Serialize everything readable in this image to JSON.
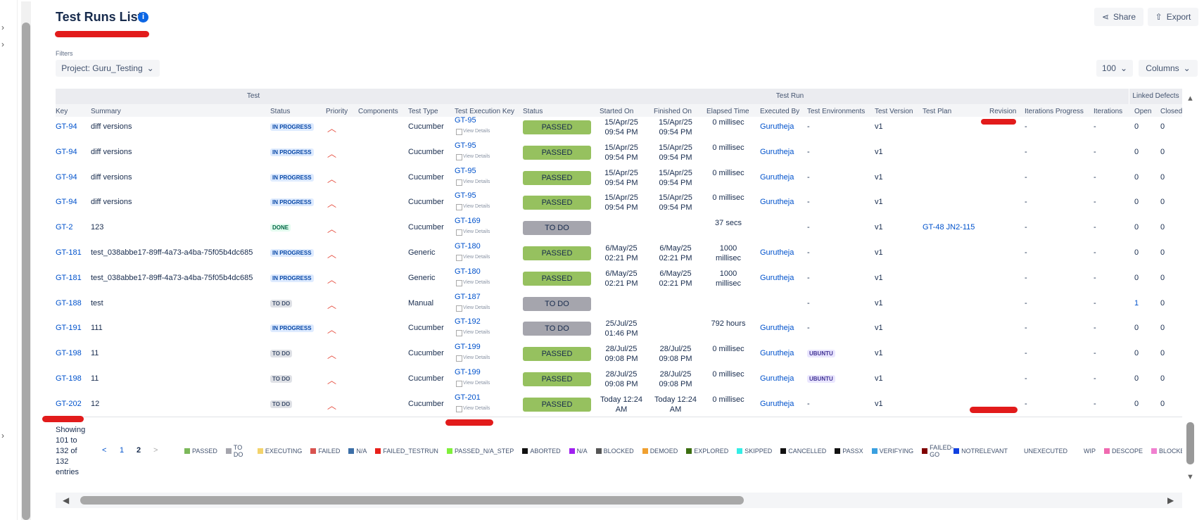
{
  "header": {
    "title": "Test Runs List",
    "share": "Share",
    "export": "Export"
  },
  "filters": {
    "label": "Filters",
    "project": "Project: Guru_Testing",
    "page_size": "100",
    "columns": "Columns"
  },
  "table": {
    "groups": [
      "Test",
      "Test Run",
      "Linked Defects"
    ],
    "columns": [
      "Key",
      "Summary",
      "Status",
      "Priority",
      "Components",
      "Test Type",
      "Test Execution Key",
      "Status",
      "Started On",
      "Finished On",
      "Elapsed Time",
      "Executed By",
      "Test Environments",
      "Test Version",
      "Test Plan",
      "Revision",
      "Iterations Progress",
      "Iterations",
      "Open",
      "Closed"
    ],
    "view_details": "View Details",
    "rows": [
      {
        "key": "GT-94",
        "summary": "diff versions",
        "status": "IN PROGRESS",
        "test_type": "Cucumber",
        "exec_key": "GT-95",
        "run_status": "PASSED",
        "started": "15/Apr/25 09:54 PM",
        "finished": "15/Apr/25 09:54 PM",
        "elapsed": "0 millisec",
        "executed_by": "Gurutheja",
        "environment": "-",
        "version": "v1",
        "iter_progress": "-",
        "iterations": "-",
        "open": 0,
        "closed": 0
      },
      {
        "key": "GT-94",
        "summary": "diff versions",
        "status": "IN PROGRESS",
        "test_type": "Cucumber",
        "exec_key": "GT-95",
        "run_status": "PASSED",
        "started": "15/Apr/25 09:54 PM",
        "finished": "15/Apr/25 09:54 PM",
        "elapsed": "0 millisec",
        "executed_by": "Gurutheja",
        "environment": "-",
        "version": "v1",
        "iter_progress": "-",
        "iterations": "-",
        "open": 0,
        "closed": 0
      },
      {
        "key": "GT-94",
        "summary": "diff versions",
        "status": "IN PROGRESS",
        "test_type": "Cucumber",
        "exec_key": "GT-95",
        "run_status": "PASSED",
        "started": "15/Apr/25 09:54 PM",
        "finished": "15/Apr/25 09:54 PM",
        "elapsed": "0 millisec",
        "executed_by": "Gurutheja",
        "environment": "-",
        "version": "v1",
        "iter_progress": "-",
        "iterations": "-",
        "open": 0,
        "closed": 0
      },
      {
        "key": "GT-94",
        "summary": "diff versions",
        "status": "IN PROGRESS",
        "test_type": "Cucumber",
        "exec_key": "GT-95",
        "run_status": "PASSED",
        "started": "15/Apr/25 09:54 PM",
        "finished": "15/Apr/25 09:54 PM",
        "elapsed": "0 millisec",
        "executed_by": "Gurutheja",
        "environment": "-",
        "version": "v1",
        "iter_progress": "-",
        "iterations": "-",
        "open": 0,
        "closed": 0
      },
      {
        "key": "GT-2",
        "summary": "123",
        "status": "DONE",
        "test_type": "Cucumber",
        "exec_key": "GT-169",
        "run_status": "TO DO",
        "elapsed": "37 secs",
        "environment": "-",
        "version": "v1",
        "plan": "GT-48 JN2-115",
        "iter_progress": "-",
        "iterations": "-",
        "open": 0,
        "closed": 0
      },
      {
        "key": "GT-181",
        "summary": "test_038abbe17-89ff-4a73-a4ba-75f05b4dc685",
        "status": "IN PROGRESS",
        "test_type": "Generic",
        "exec_key": "GT-180",
        "run_status": "PASSED",
        "started": "6/May/25 02:21 PM",
        "finished": "6/May/25 02:21 PM",
        "elapsed": "1000 millisec",
        "executed_by": "Gurutheja",
        "environment": "-",
        "version": "v1",
        "iter_progress": "-",
        "iterations": "-",
        "open": 0,
        "closed": 0
      },
      {
        "key": "GT-181",
        "summary": "test_038abbe17-89ff-4a73-a4ba-75f05b4dc685",
        "status": "IN PROGRESS",
        "test_type": "Generic",
        "exec_key": "GT-180",
        "run_status": "PASSED",
        "started": "6/May/25 02:21 PM",
        "finished": "6/May/25 02:21 PM",
        "elapsed": "1000 millisec",
        "executed_by": "Gurutheja",
        "environment": "-",
        "version": "v1",
        "iter_progress": "-",
        "iterations": "-",
        "open": 0,
        "closed": 0
      },
      {
        "key": "GT-188",
        "summary": "test",
        "status": "TO DO",
        "test_type": "Manual",
        "exec_key": "GT-187",
        "run_status": "TO DO",
        "environment": "-",
        "version": "v1",
        "iter_progress": "-",
        "iterations": "-",
        "open": 1,
        "closed": 0
      },
      {
        "key": "GT-191",
        "summary": "111",
        "status": "IN PROGRESS",
        "test_type": "Cucumber",
        "exec_key": "GT-192",
        "run_status": "TO DO",
        "started": "25/Jul/25 01:46 PM",
        "elapsed": "792 hours",
        "executed_by": "Gurutheja",
        "environment": "-",
        "version": "v1",
        "iter_progress": "-",
        "iterations": "-",
        "open": 0,
        "closed": 0
      },
      {
        "key": "GT-198",
        "summary": "11",
        "status": "TO DO",
        "test_type": "Cucumber",
        "exec_key": "GT-199",
        "run_status": "PASSED",
        "started": "28/Jul/25 09:08 PM",
        "finished": "28/Jul/25 09:08 PM",
        "elapsed": "0 millisec",
        "executed_by": "Gurutheja",
        "environment": "UBUNTU",
        "version": "v1",
        "iter_progress": "-",
        "iterations": "-",
        "open": 0,
        "closed": 0
      },
      {
        "key": "GT-198",
        "summary": "11",
        "status": "TO DO",
        "test_type": "Cucumber",
        "exec_key": "GT-199",
        "run_status": "PASSED",
        "started": "28/Jul/25 09:08 PM",
        "finished": "28/Jul/25 09:08 PM",
        "elapsed": "0 millisec",
        "executed_by": "Gurutheja",
        "environment": "UBUNTU",
        "version": "v1",
        "iter_progress": "-",
        "iterations": "-",
        "open": 0,
        "closed": 0
      },
      {
        "key": "GT-202",
        "summary": "12",
        "status": "TO DO",
        "test_type": "Cucumber",
        "exec_key": "GT-201",
        "run_status": "PASSED",
        "started": "Today 12:24 AM",
        "finished": "Today 12:24 AM",
        "elapsed": "0 millisec",
        "executed_by": "Gurutheja",
        "environment": "-",
        "version": "v1",
        "iter_progress": "-",
        "iterations": "-",
        "open": 0,
        "closed": 0
      }
    ]
  },
  "footer": {
    "showing": "Showing 101 to 132 of 132 entries",
    "prev": "<",
    "pages": [
      "1",
      "2"
    ],
    "next": ">",
    "legend": [
      {
        "name": "PASSED",
        "color": "#7cb85a"
      },
      {
        "name": "TO DO",
        "color": "#a5a5ad"
      },
      {
        "name": "EXECUTING",
        "color": "#f3d36b"
      },
      {
        "name": "FAILED",
        "color": "#d9534f"
      },
      {
        "name": "N/A",
        "color": "#3c6fa8"
      },
      {
        "name": "FAILED_TESTRUN",
        "color": "#e8201a"
      },
      {
        "name": "PASSED_N/A_STEP",
        "color": "#7ff03a"
      },
      {
        "name": "ABORTED",
        "color": "#111111"
      },
      {
        "name": "N/A",
        "color": "#a020f0"
      },
      {
        "name": "BLOCKED",
        "color": "#555555"
      },
      {
        "name": "DEMOED",
        "color": "#f0a030"
      },
      {
        "name": "EXPLORED",
        "color": "#3b6e10"
      },
      {
        "name": "SKIPPED",
        "color": "#33eee6"
      },
      {
        "name": "CANCELLED",
        "color": "#111111"
      },
      {
        "name": "PASSX",
        "color": "#111111"
      },
      {
        "name": "VERIFYING",
        "color": "#3aa0e0"
      },
      {
        "name": "FAILED-GO",
        "color": "#800000"
      },
      {
        "name": "NOTRELEVANT",
        "color": "#1040e0"
      },
      {
        "name": "UNEXECUTED",
        "color": "#ffffff"
      },
      {
        "name": "WIP",
        "color": "#ffffff"
      },
      {
        "name": "DESCOPE",
        "color": "#f06ab0"
      },
      {
        "name": "BLOCKED_MIGR",
        "color": "#f080d0"
      }
    ]
  }
}
